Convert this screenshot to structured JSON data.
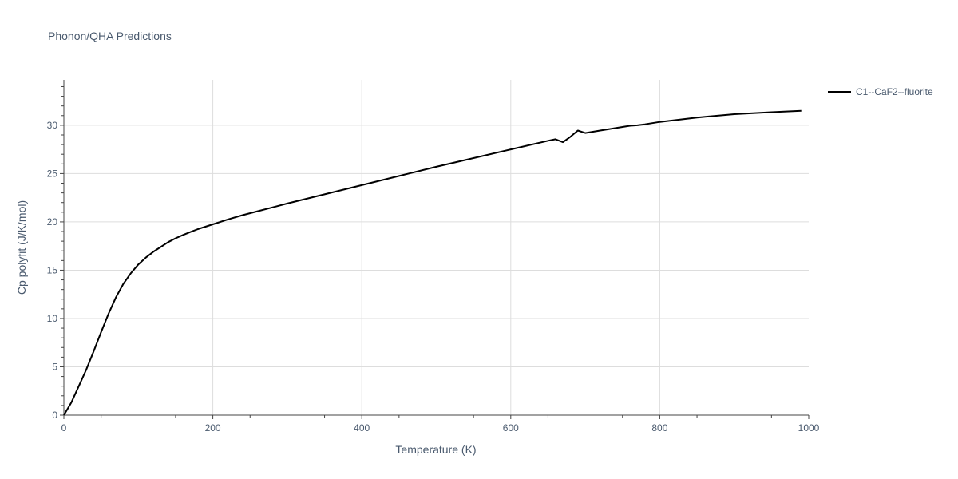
{
  "chart_data": {
    "type": "line",
    "title": "Phonon/QHA Predictions",
    "xlabel": "Temperature (K)",
    "ylabel": "Cp polyfit (J/K/mol)",
    "xlim": [
      0,
      1000
    ],
    "ylim": [
      0,
      34.7
    ],
    "x_ticks": [
      0,
      200,
      400,
      600,
      800,
      1000
    ],
    "y_ticks": [
      0,
      5,
      10,
      15,
      20,
      25,
      30
    ],
    "grid": true,
    "legend_position": "top-right",
    "colors": {
      "series": "#000000",
      "grid": "#dddddd",
      "axis": "#444444",
      "text": "#4a5a6e"
    },
    "series": [
      {
        "name": "C1--CaF2--fluorite",
        "x": [
          0,
          10,
          20,
          30,
          40,
          50,
          60,
          70,
          80,
          90,
          100,
          110,
          120,
          130,
          140,
          150,
          160,
          170,
          180,
          190,
          200,
          220,
          240,
          260,
          280,
          300,
          350,
          400,
          450,
          500,
          550,
          600,
          650,
          660,
          670,
          680,
          690,
          700,
          720,
          740,
          760,
          770,
          780,
          800,
          850,
          900,
          950,
          990
        ],
        "y": [
          0,
          1.3,
          3.0,
          4.7,
          6.6,
          8.6,
          10.5,
          12.2,
          13.6,
          14.7,
          15.6,
          16.3,
          16.9,
          17.4,
          17.9,
          18.3,
          18.65,
          18.95,
          19.25,
          19.5,
          19.75,
          20.25,
          20.7,
          21.1,
          21.5,
          21.9,
          22.85,
          23.8,
          24.75,
          25.7,
          26.6,
          27.5,
          28.4,
          28.55,
          28.25,
          28.8,
          29.45,
          29.2,
          29.45,
          29.7,
          29.95,
          30.0,
          30.1,
          30.35,
          30.8,
          31.15,
          31.35,
          31.5
        ]
      }
    ]
  }
}
